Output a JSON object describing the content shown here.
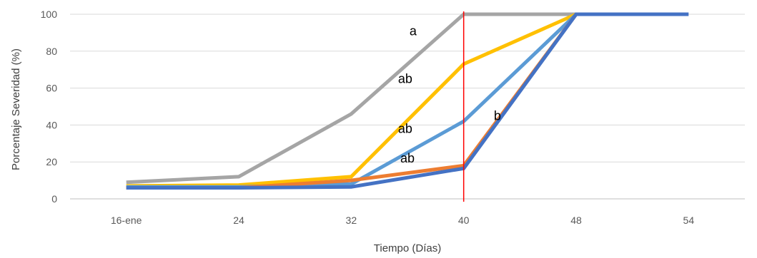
{
  "chart_data": {
    "type": "line",
    "title": "",
    "xlabel": "Tiempo (Días)",
    "ylabel": "Porcentaje Severidad (%)",
    "categories": [
      "16-ene",
      "24",
      "32",
      "40",
      "48",
      "54"
    ],
    "ylim": [
      0,
      100
    ],
    "yticks": [
      0,
      20,
      40,
      60,
      80,
      100
    ],
    "grid": true,
    "legend": "none",
    "series": [
      {
        "color": "#A5A5A5",
        "values": [
          9,
          12,
          46,
          100,
          100,
          null
        ]
      },
      {
        "color": "#FFC000",
        "values": [
          7,
          7.5,
          12,
          73,
          100,
          null
        ]
      },
      {
        "color": "#5B9BD5",
        "values": [
          6.5,
          6.5,
          8,
          42,
          100,
          null
        ]
      },
      {
        "color": "#ED7D31",
        "values": [
          6,
          6,
          10,
          18,
          100,
          null
        ]
      },
      {
        "color": "#4472C4",
        "values": [
          6,
          6,
          6.5,
          16.5,
          100,
          100
        ]
      }
    ],
    "reference_line": {
      "x_category": "40",
      "color": "#FF0000"
    },
    "annotations": [
      {
        "text": "a",
        "x_category": "40",
        "x_offset": -0.45,
        "y": 91
      },
      {
        "text": "ab",
        "x_category": "40",
        "x_offset": -0.52,
        "y": 65
      },
      {
        "text": "ab",
        "x_category": "40",
        "x_offset": -0.52,
        "y": 38
      },
      {
        "text": "ab",
        "x_category": "40",
        "x_offset": -0.5,
        "y": 22
      },
      {
        "text": "b",
        "x_category": "40",
        "x_offset": 0.3,
        "y": 45
      }
    ]
  }
}
